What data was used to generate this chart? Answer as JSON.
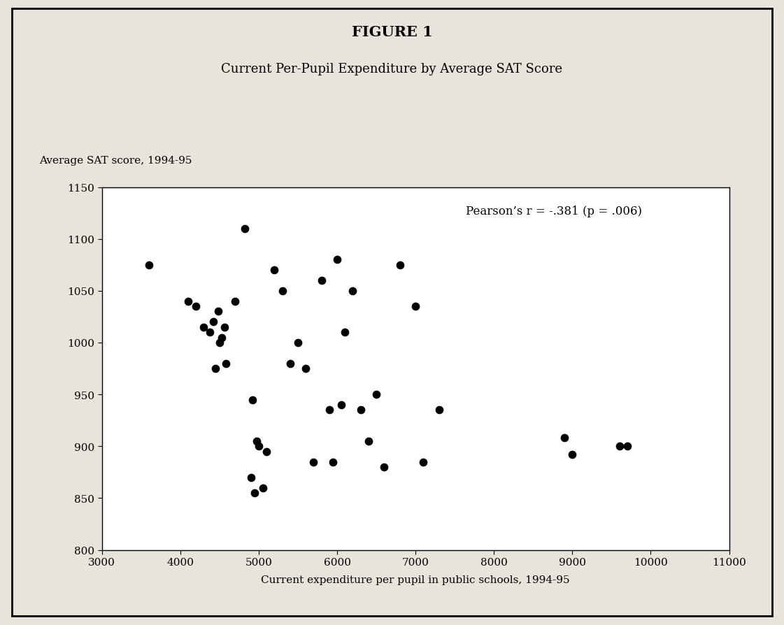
{
  "title_line1": "FIGURE 1",
  "title_line2": "Current Per-Pupil Expenditure by Average SAT Score",
  "ylabel": "Average SAT score, 1994-95",
  "xlabel": "Current expenditure per pupil in public schools, 1994-95",
  "annotation": "Pearson’s r = -.381 (p = .006)",
  "xlim": [
    3000,
    11000
  ],
  "ylim": [
    800,
    1150
  ],
  "xticks": [
    3000,
    4000,
    5000,
    6000,
    7000,
    8000,
    9000,
    10000,
    11000
  ],
  "yticks": [
    800,
    850,
    900,
    950,
    1000,
    1050,
    1100,
    1150
  ],
  "x": [
    3600,
    4100,
    4200,
    4300,
    4380,
    4420,
    4450,
    4480,
    4500,
    4530,
    4560,
    4580,
    4700,
    4820,
    4900,
    4920,
    4950,
    4970,
    5000,
    5050,
    5100,
    5200,
    5300,
    5400,
    5500,
    5600,
    5700,
    5800,
    5900,
    5950,
    6000,
    6050,
    6100,
    6200,
    6300,
    6400,
    6500,
    6600,
    6800,
    7000,
    7100,
    7300,
    8900,
    9000,
    9600,
    9700
  ],
  "y": [
    1075,
    1040,
    1035,
    1015,
    1010,
    1020,
    975,
    1030,
    1000,
    1005,
    1015,
    980,
    1040,
    1110,
    870,
    945,
    855,
    905,
    900,
    860,
    895,
    1070,
    1050,
    980,
    1000,
    975,
    885,
    1060,
    935,
    885,
    1080,
    940,
    1010,
    1050,
    935,
    905,
    950,
    880,
    1075,
    1035,
    885,
    935,
    908,
    892,
    900,
    900
  ],
  "marker_size": 55,
  "marker_color": "#000000",
  "background_color": "#e8e4dc",
  "plot_bg_color": "#ffffff",
  "border_color": "#000000",
  "font_family": "serif",
  "title1_fontsize": 15,
  "title2_fontsize": 13,
  "tick_fontsize": 11,
  "label_fontsize": 11,
  "annot_fontsize": 12
}
